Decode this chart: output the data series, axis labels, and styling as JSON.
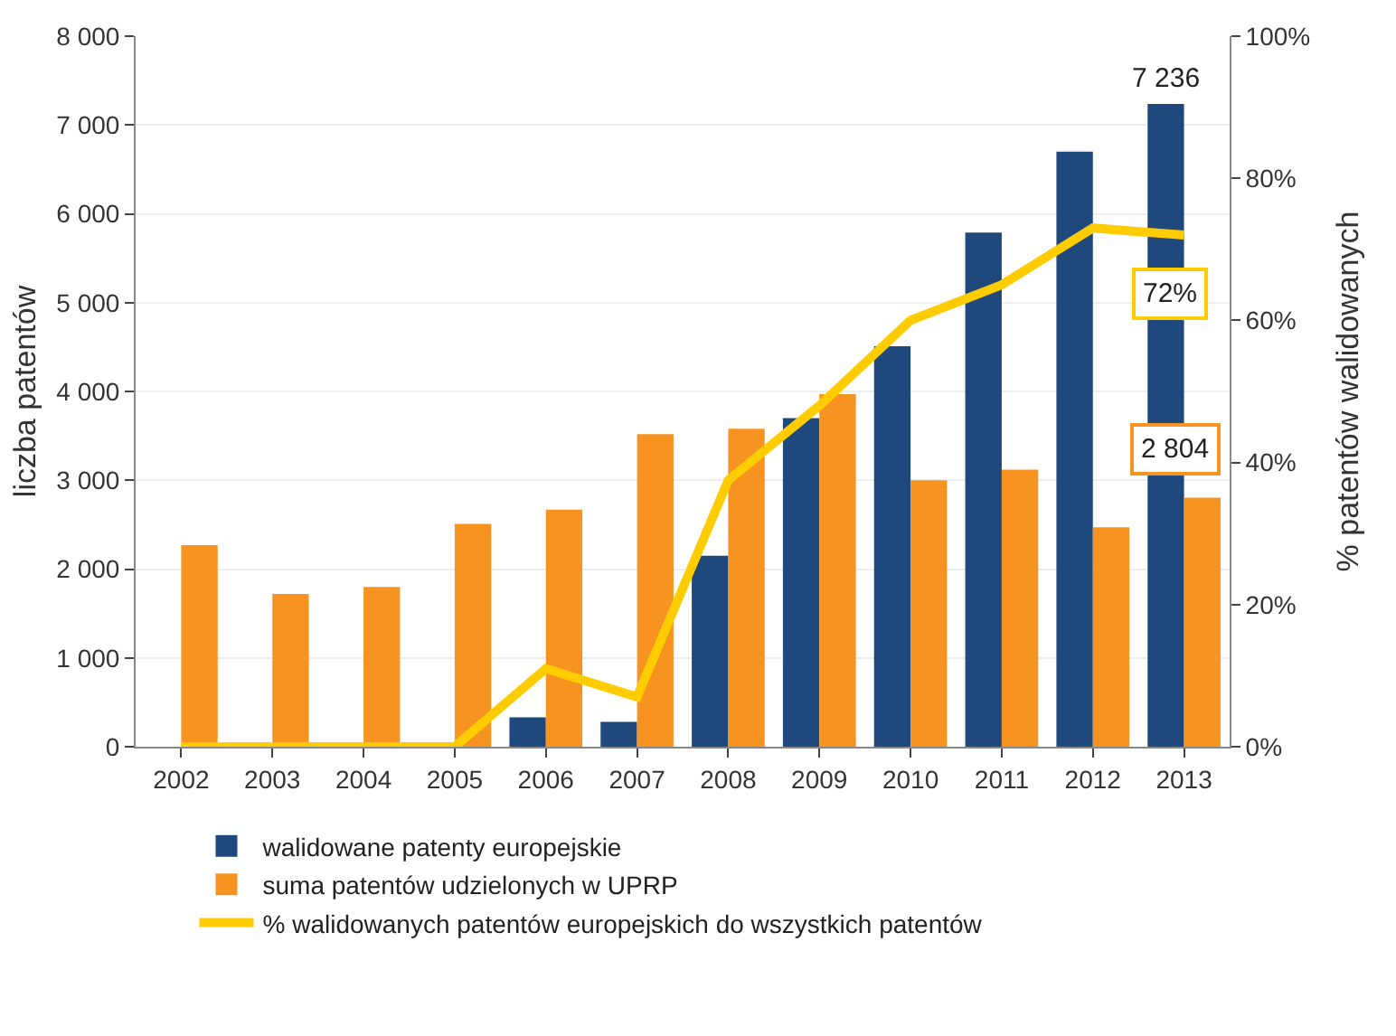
{
  "chart_data": {
    "type": "bar",
    "categories": [
      "2002",
      "2003",
      "2004",
      "2005",
      "2006",
      "2007",
      "2008",
      "2009",
      "2010",
      "2011",
      "2012",
      "2013"
    ],
    "ylabel": "liczba patentów",
    "y2label": "% patentów walidowanych",
    "series": [
      {
        "name": "walidowane patenty europejskie",
        "color": "#1f497d",
        "values": [
          0,
          0,
          0,
          0,
          330,
          280,
          2150,
          3700,
          4510,
          5790,
          6700,
          7236
        ],
        "value_labels": [
          null,
          null,
          null,
          null,
          null,
          null,
          null,
          null,
          null,
          null,
          null,
          "7 236"
        ]
      },
      {
        "name": "suma patentów udzielonych w UPRP",
        "color": "#f79321",
        "values": [
          2270,
          1720,
          1800,
          2510,
          2670,
          3520,
          3580,
          3970,
          3000,
          3120,
          2470,
          2804
        ],
        "value_labels": [
          null,
          null,
          null,
          null,
          null,
          null,
          null,
          null,
          null,
          null,
          null,
          "2 804"
        ]
      },
      {
        "name": "% walidowanych patentów europejskich do wszystkich patentów",
        "type": "line",
        "axis": "y2",
        "color": "#ffcc00",
        "values": [
          0,
          0,
          0,
          0,
          11,
          7,
          37.5,
          48,
          60,
          65,
          73,
          72
        ],
        "value_labels": [
          null,
          null,
          null,
          null,
          null,
          null,
          null,
          null,
          null,
          null,
          null,
          "72%"
        ]
      }
    ],
    "ylim": [
      0,
      8000
    ],
    "yticks": [
      0,
      {
        "value": 1000,
        "label": "1 000"
      },
      {
        "value": 2000,
        "label": "2 000"
      },
      {
        "value": 3000,
        "label": "3 000"
      },
      {
        "value": 4000,
        "label": "4 000"
      },
      {
        "value": 5000,
        "label": "5 000"
      },
      {
        "value": 6000,
        "label": "6 000"
      },
      {
        "value": 7000,
        "label": "7 000"
      },
      {
        "value": 8000,
        "label": "8 000"
      }
    ],
    "y2lim": [
      0,
      100
    ],
    "y2ticks": [
      {
        "value": 0,
        "label": "0%"
      },
      {
        "value": 20,
        "label": "20%"
      },
      {
        "value": 40,
        "label": "40%"
      },
      {
        "value": 60,
        "label": "60%"
      },
      {
        "value": 80,
        "label": "80%"
      },
      {
        "value": 100,
        "label": "100%"
      }
    ],
    "grid": "y",
    "legend": "bottom"
  }
}
